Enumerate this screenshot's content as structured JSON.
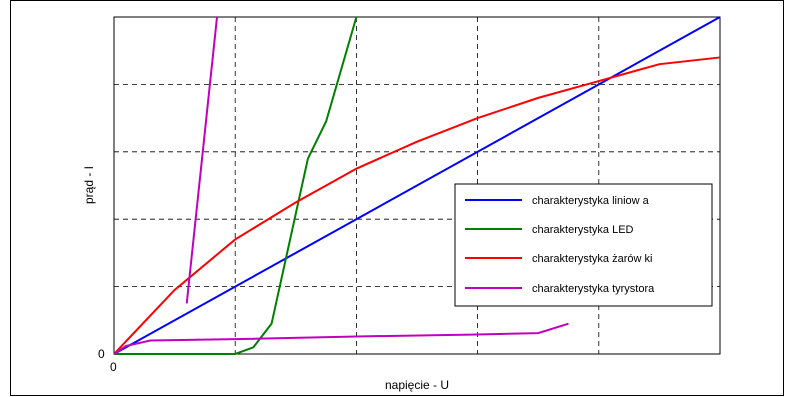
{
  "chart_data": {
    "type": "line",
    "xlabel": "napięcie - U",
    "ylabel": "prąd - I",
    "x_tick_labels": [
      "0"
    ],
    "y_tick_labels": [
      "0"
    ],
    "xlim": [
      0,
      5
    ],
    "ylim": [
      0,
      5
    ],
    "grid": true,
    "grid_style": "dashed",
    "legend_position": "right",
    "series": [
      {
        "name": "charakterystyka liniow a",
        "color": "#0000ff",
        "x": [
          0,
          5
        ],
        "y": [
          0,
          5
        ]
      },
      {
        "name": "charakterystyka LED",
        "color": "#008000",
        "x": [
          0,
          1.0,
          1.15,
          1.3,
          1.6,
          1.75,
          2.0
        ],
        "y": [
          0,
          0,
          0.1,
          0.45,
          2.9,
          3.45,
          5.0
        ]
      },
      {
        "name": "charakterystyka żarów ki",
        "color": "#ff0000",
        "x": [
          0,
          0.5,
          1.0,
          1.5,
          2.0,
          2.5,
          3.0,
          3.5,
          4.0,
          4.5,
          5.0
        ],
        "y": [
          0,
          0.95,
          1.7,
          2.25,
          2.75,
          3.15,
          3.5,
          3.8,
          4.05,
          4.3,
          4.4
        ]
      },
      {
        "name": "charakterystyka tyrystora",
        "color": "#c000c0",
        "x": [
          0,
          0.1,
          0.3,
          1.0,
          2.0,
          3.0,
          3.5,
          3.75
        ],
        "y": [
          0,
          0.12,
          0.2,
          0.22,
          0.26,
          0.29,
          0.31,
          0.45
        ],
        "x2": [
          0.6,
          0.85
        ],
        "y2": [
          0.75,
          5.0
        ]
      }
    ]
  }
}
